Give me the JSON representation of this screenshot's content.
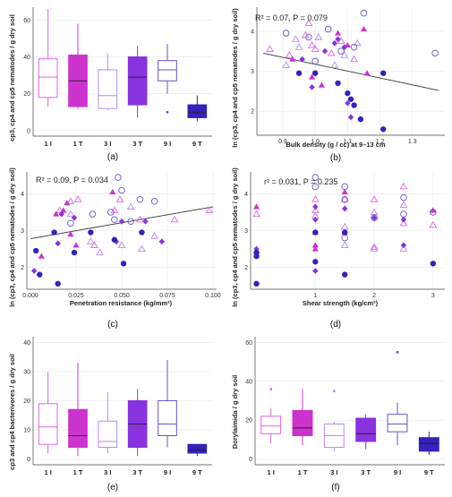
{
  "figure": {
    "panels": [
      {
        "caption": "(a)"
      },
      {
        "caption": "(b)"
      },
      {
        "caption": "(c)"
      },
      {
        "caption": "(d)"
      },
      {
        "caption": "(e)"
      },
      {
        "caption": "(f)"
      }
    ]
  },
  "colors": {
    "I1": "#dd66e0",
    "T1": "#cc33cc",
    "I3": "#bb88ee",
    "T3": "#8833dd",
    "I9": "#6655cc",
    "T9": "#3322bb",
    "line": "#333333"
  },
  "chart_data": [
    {
      "panel": "a",
      "type": "box",
      "ylabel": "cp3, cp4 and cp5 nematodes / g dry soil",
      "categories": [
        "1 I",
        "1 T",
        "3 I",
        "3 T",
        "9 I",
        "9 T"
      ],
      "ylim": [
        -3,
        67
      ],
      "yticks": [
        0,
        20,
        40,
        60
      ],
      "boxes": [
        {
          "cat": "1 I",
          "whislo": 13,
          "q1": 18,
          "med": 29,
          "q3": 39,
          "whishi": 66,
          "fliers": [],
          "filled": false,
          "color": "I1"
        },
        {
          "cat": "1 T",
          "whislo": 12,
          "q1": 13,
          "med": 27,
          "q3": 41,
          "whishi": 58,
          "fliers": [],
          "filled": true,
          "color": "T1"
        },
        {
          "cat": "3 I",
          "whislo": 11,
          "q1": 12,
          "med": 19,
          "q3": 33,
          "whishi": 42,
          "fliers": [],
          "filled": false,
          "color": "I3"
        },
        {
          "cat": "3 T",
          "whislo": 7,
          "q1": 14,
          "med": 29,
          "q3": 40,
          "whishi": 46,
          "fliers": [],
          "filled": true,
          "color": "T3"
        },
        {
          "cat": "9 I",
          "whislo": 20,
          "q1": 27,
          "med": 33,
          "q3": 38,
          "whishi": 47,
          "fliers": [
            10
          ],
          "filled": false,
          "color": "I9"
        },
        {
          "cat": "9 T",
          "whislo": 5,
          "q1": 7,
          "med": 10,
          "q3": 14,
          "whishi": 19,
          "fliers": [],
          "filled": true,
          "color": "T9"
        }
      ]
    },
    {
      "panel": "b",
      "type": "scatter",
      "annotation": "R² = 0.07, P = 0.079",
      "ylabel": "ln (cp3, cp4 and cp5 nematodes / g dry soil)",
      "xlabel": "Bulk density (g / cc) at 9–13 cm",
      "xlim": [
        0.82,
        1.4
      ],
      "ylim": [
        1.4,
        4.6
      ],
      "xticks": [
        0.9,
        1.0,
        1.1,
        1.2,
        1.3
      ],
      "xticklabels": [
        "0.9",
        "1.0",
        "1.1",
        "1.2",
        "1.3"
      ],
      "yticks": [
        2,
        3,
        4
      ],
      "trend": {
        "x": [
          0.84,
          1.38
        ],
        "y": [
          3.45,
          2.52
        ]
      },
      "points": [
        {
          "x": 0.98,
          "y": 4.2,
          "g": "I1"
        },
        {
          "x": 0.99,
          "y": 3.65,
          "g": "I1"
        },
        {
          "x": 1.0,
          "y": 3.55,
          "g": "I1"
        },
        {
          "x": 1.05,
          "y": 3.45,
          "g": "I1"
        },
        {
          "x": 1.12,
          "y": 3.3,
          "g": "I1"
        },
        {
          "x": 0.92,
          "y": 3.4,
          "g": "I1"
        },
        {
          "x": 0.97,
          "y": 3.9,
          "g": "I1"
        },
        {
          "x": 0.86,
          "y": 3.55,
          "g": "I1"
        },
        {
          "x": 1.08,
          "y": 3.75,
          "g": "I1"
        },
        {
          "x": 0.93,
          "y": 3.3,
          "g": "T1"
        },
        {
          "x": 1.02,
          "y": 2.65,
          "g": "T1"
        },
        {
          "x": 1.07,
          "y": 3.95,
          "g": "T1"
        },
        {
          "x": 1.1,
          "y": 3.65,
          "g": "T1"
        },
        {
          "x": 1.15,
          "y": 4.05,
          "g": "T1"
        },
        {
          "x": 1.16,
          "y": 2.95,
          "g": "T1"
        },
        {
          "x": 0.99,
          "y": 2.85,
          "g": "T1"
        },
        {
          "x": 0.94,
          "y": 3.8,
          "g": "I3"
        },
        {
          "x": 0.95,
          "y": 3.6,
          "g": "I3"
        },
        {
          "x": 1.01,
          "y": 3.85,
          "g": "I3"
        },
        {
          "x": 1.06,
          "y": 3.15,
          "g": "I3"
        },
        {
          "x": 1.09,
          "y": 3.4,
          "g": "I3"
        },
        {
          "x": 1.13,
          "y": 3.7,
          "g": "I3"
        },
        {
          "x": 0.91,
          "y": 3.15,
          "g": "I3"
        },
        {
          "x": 0.96,
          "y": 3.3,
          "g": "T3"
        },
        {
          "x": 1.03,
          "y": 3.5,
          "g": "T3"
        },
        {
          "x": 1.06,
          "y": 3.7,
          "g": "T3"
        },
        {
          "x": 1.09,
          "y": 3.6,
          "g": "T3"
        },
        {
          "x": 1.1,
          "y": 2.2,
          "g": "T3"
        },
        {
          "x": 1.11,
          "y": 1.85,
          "g": "T3"
        },
        {
          "x": 1.07,
          "y": 3.8,
          "g": "T3"
        },
        {
          "x": 0.99,
          "y": 2.6,
          "g": "T3"
        },
        {
          "x": 0.91,
          "y": 3.95,
          "g": "I9"
        },
        {
          "x": 0.98,
          "y": 3.85,
          "g": "I9"
        },
        {
          "x": 1.0,
          "y": 3.25,
          "g": "I9"
        },
        {
          "x": 1.04,
          "y": 4.05,
          "g": "I9"
        },
        {
          "x": 1.08,
          "y": 3.5,
          "g": "I9"
        },
        {
          "x": 1.15,
          "y": 4.45,
          "g": "I9"
        },
        {
          "x": 1.37,
          "y": 3.45,
          "g": "I9"
        },
        {
          "x": 1.12,
          "y": 3.6,
          "g": "I9"
        },
        {
          "x": 0.95,
          "y": 2.95,
          "g": "T9"
        },
        {
          "x": 1.0,
          "y": 2.95,
          "g": "T9"
        },
        {
          "x": 1.07,
          "y": 2.7,
          "g": "T9"
        },
        {
          "x": 1.1,
          "y": 2.45,
          "g": "T9"
        },
        {
          "x": 1.11,
          "y": 2.3,
          "g": "T9"
        },
        {
          "x": 1.12,
          "y": 2.15,
          "g": "T9"
        },
        {
          "x": 1.14,
          "y": 1.8,
          "g": "T9"
        },
        {
          "x": 1.21,
          "y": 2.95,
          "g": "T9"
        },
        {
          "x": 1.21,
          "y": 1.55,
          "g": "T9"
        }
      ]
    },
    {
      "panel": "c",
      "type": "scatter",
      "annotation": "R² = 0.09, P = 0.034",
      "ylabel": "ln (cp3, cp4 and cp5 nematodes / g dry soil)",
      "xlabel": "Penetration resistance (kg/mm²)",
      "xlim": [
        -0.002,
        0.102
      ],
      "ylim": [
        1.4,
        4.6
      ],
      "xticks": [
        0.0,
        0.025,
        0.05,
        0.075,
        0.1
      ],
      "xticklabels": [
        "0.000",
        "0.025",
        "0.050",
        "0.075",
        "0.100"
      ],
      "yticks": [
        2,
        3,
        4
      ],
      "trend": {
        "x": [
          0.0,
          0.1
        ],
        "y": [
          2.78,
          3.65
        ]
      },
      "points": [
        {
          "x": 0.016,
          "y": 3.55,
          "g": "I1"
        },
        {
          "x": 0.022,
          "y": 3.8,
          "g": "I1"
        },
        {
          "x": 0.026,
          "y": 3.85,
          "g": "I1"
        },
        {
          "x": 0.035,
          "y": 2.6,
          "g": "I1"
        },
        {
          "x": 0.046,
          "y": 3.55,
          "g": "I1"
        },
        {
          "x": 0.049,
          "y": 3.85,
          "g": "I1"
        },
        {
          "x": 0.06,
          "y": 3.3,
          "g": "I1"
        },
        {
          "x": 0.079,
          "y": 3.3,
          "g": "I1"
        },
        {
          "x": 0.098,
          "y": 3.55,
          "g": "I1"
        },
        {
          "x": 0.006,
          "y": 2.3,
          "g": "T1"
        },
        {
          "x": 0.014,
          "y": 3.45,
          "g": "T1"
        },
        {
          "x": 0.018,
          "y": 3.55,
          "g": "T1"
        },
        {
          "x": 0.02,
          "y": 3.75,
          "g": "T1"
        },
        {
          "x": 0.022,
          "y": 2.9,
          "g": "T1"
        },
        {
          "x": 0.025,
          "y": 2.6,
          "g": "T1"
        },
        {
          "x": 0.045,
          "y": 4.05,
          "g": "T1"
        },
        {
          "x": 0.022,
          "y": 3.45,
          "g": "I3"
        },
        {
          "x": 0.033,
          "y": 2.7,
          "g": "I3"
        },
        {
          "x": 0.038,
          "y": 2.4,
          "g": "I3"
        },
        {
          "x": 0.05,
          "y": 2.6,
          "g": "I3"
        },
        {
          "x": 0.055,
          "y": 3.65,
          "g": "I3"
        },
        {
          "x": 0.061,
          "y": 2.5,
          "g": "I3"
        },
        {
          "x": 0.068,
          "y": 2.85,
          "g": "I3"
        },
        {
          "x": 0.002,
          "y": 1.9,
          "g": "T3"
        },
        {
          "x": 0.015,
          "y": 2.65,
          "g": "T3"
        },
        {
          "x": 0.017,
          "y": 3.45,
          "g": "T3"
        },
        {
          "x": 0.024,
          "y": 3.35,
          "g": "T3"
        },
        {
          "x": 0.047,
          "y": 2.7,
          "g": "T3"
        },
        {
          "x": 0.05,
          "y": 3.25,
          "g": "T3"
        },
        {
          "x": 0.063,
          "y": 3.25,
          "g": "T3"
        },
        {
          "x": 0.072,
          "y": 2.7,
          "g": "T3"
        },
        {
          "x": 0.022,
          "y": 3.2,
          "g": "I9"
        },
        {
          "x": 0.034,
          "y": 3.45,
          "g": "I9"
        },
        {
          "x": 0.044,
          "y": 3.5,
          "g": "I9"
        },
        {
          "x": 0.046,
          "y": 3.3,
          "g": "I9"
        },
        {
          "x": 0.048,
          "y": 4.45,
          "g": "I9"
        },
        {
          "x": 0.05,
          "y": 4.1,
          "g": "I9"
        },
        {
          "x": 0.055,
          "y": 3.25,
          "g": "I9"
        },
        {
          "x": 0.06,
          "y": 3.85,
          "g": "I9"
        },
        {
          "x": 0.068,
          "y": 3.8,
          "g": "I9"
        },
        {
          "x": 0.003,
          "y": 2.45,
          "g": "T9"
        },
        {
          "x": 0.005,
          "y": 1.8,
          "g": "T9"
        },
        {
          "x": 0.013,
          "y": 2.95,
          "g": "T9"
        },
        {
          "x": 0.015,
          "y": 1.55,
          "g": "T9"
        },
        {
          "x": 0.024,
          "y": 2.4,
          "g": "T9"
        },
        {
          "x": 0.033,
          "y": 2.95,
          "g": "T9"
        },
        {
          "x": 0.046,
          "y": 2.75,
          "g": "T9"
        },
        {
          "x": 0.051,
          "y": 2.1,
          "g": "T9"
        },
        {
          "x": 0.061,
          "y": 2.95,
          "g": "T9"
        }
      ]
    },
    {
      "panel": "d",
      "type": "scatter",
      "annotation": "r² = 0.031, P = 0.235",
      "ylabel": "ln (cp3, cp4 and cp5 nematodes / g dry soil)",
      "xlabel": "Shear strength (kg/cm²)",
      "xlim": [
        -0.1,
        3.2
      ],
      "ylim": [
        1.4,
        4.6
      ],
      "xticks": [
        1,
        2,
        3
      ],
      "xticklabels": [
        "1",
        "2",
        "3"
      ],
      "yticks": [
        2,
        3,
        4
      ],
      "trend": null,
      "points": [
        {
          "x": 0.0,
          "y": 3.45,
          "g": "I1"
        },
        {
          "x": 1.0,
          "y": 3.85,
          "g": "I1"
        },
        {
          "x": 1.0,
          "y": 3.55,
          "g": "I1"
        },
        {
          "x": 1.5,
          "y": 3.85,
          "g": "I1"
        },
        {
          "x": 2.0,
          "y": 3.85,
          "g": "I1"
        },
        {
          "x": 2.0,
          "y": 2.55,
          "g": "I1"
        },
        {
          "x": 2.5,
          "y": 4.2,
          "g": "I1"
        },
        {
          "x": 2.5,
          "y": 3.2,
          "g": "I1"
        },
        {
          "x": 3.0,
          "y": 3.15,
          "g": "I1"
        },
        {
          "x": 0.0,
          "y": 3.65,
          "g": "T1"
        },
        {
          "x": 1.0,
          "y": 2.95,
          "g": "T1"
        },
        {
          "x": 1.0,
          "y": 2.6,
          "g": "T1"
        },
        {
          "x": 1.0,
          "y": 2.5,
          "g": "T1"
        },
        {
          "x": 1.5,
          "y": 4.05,
          "g": "T1"
        },
        {
          "x": 1.5,
          "y": 2.95,
          "g": "T1"
        },
        {
          "x": 3.0,
          "y": 3.55,
          "g": "T1"
        },
        {
          "x": 1.0,
          "y": 3.4,
          "g": "I3"
        },
        {
          "x": 1.5,
          "y": 3.1,
          "g": "I3"
        },
        {
          "x": 1.5,
          "y": 2.6,
          "g": "I3"
        },
        {
          "x": 2.0,
          "y": 3.5,
          "g": "I3"
        },
        {
          "x": 2.0,
          "y": 2.5,
          "g": "I3"
        },
        {
          "x": 2.5,
          "y": 3.7,
          "g": "I3"
        },
        {
          "x": 2.5,
          "y": 2.5,
          "g": "I3"
        },
        {
          "x": 0.0,
          "y": 2.5,
          "g": "T3"
        },
        {
          "x": 1.0,
          "y": 3.65,
          "g": "T3"
        },
        {
          "x": 1.0,
          "y": 1.9,
          "g": "T3"
        },
        {
          "x": 1.0,
          "y": 3.3,
          "g": "T3"
        },
        {
          "x": 1.5,
          "y": 3.6,
          "g": "T3"
        },
        {
          "x": 2.0,
          "y": 3.35,
          "g": "T3"
        },
        {
          "x": 2.5,
          "y": 2.6,
          "g": "T3"
        },
        {
          "x": 2.5,
          "y": 3.3,
          "g": "T3"
        },
        {
          "x": 1.0,
          "y": 4.45,
          "g": "I9"
        },
        {
          "x": 1.0,
          "y": 4.2,
          "g": "I9"
        },
        {
          "x": 1.5,
          "y": 4.2,
          "g": "I9"
        },
        {
          "x": 1.5,
          "y": 3.85,
          "g": "I9"
        },
        {
          "x": 1.5,
          "y": 2.8,
          "g": "I9"
        },
        {
          "x": 2.0,
          "y": 3.35,
          "g": "I9"
        },
        {
          "x": 2.5,
          "y": 3.9,
          "g": "I9"
        },
        {
          "x": 2.5,
          "y": 3.45,
          "g": "I9"
        },
        {
          "x": 3.0,
          "y": 3.5,
          "g": "I9"
        },
        {
          "x": 0.0,
          "y": 2.4,
          "g": "T9"
        },
        {
          "x": 0.0,
          "y": 2.3,
          "g": "T9"
        },
        {
          "x": 0.0,
          "y": 1.55,
          "g": "T9"
        },
        {
          "x": 1.0,
          "y": 2.95,
          "g": "T9"
        },
        {
          "x": 1.0,
          "y": 2.15,
          "g": "T9"
        },
        {
          "x": 1.5,
          "y": 1.8,
          "g": "T9"
        },
        {
          "x": 1.5,
          "y": 2.95,
          "g": "T9"
        },
        {
          "x": 3.0,
          "y": 2.1,
          "g": "T9"
        }
      ]
    },
    {
      "panel": "e",
      "type": "box",
      "ylabel": "cp3 and cp4 bacterivores / g dry soil",
      "categories": [
        "1 I",
        "1 T",
        "3 I",
        "3 T",
        "9 I",
        "9 T"
      ],
      "ylim": [
        -2,
        42
      ],
      "yticks": [
        0,
        10,
        20,
        30,
        40
      ],
      "boxes": [
        {
          "cat": "1 I",
          "whislo": 2,
          "q1": 5,
          "med": 11,
          "q3": 19,
          "whishi": 30,
          "fliers": [],
          "filled": false,
          "color": "I1"
        },
        {
          "cat": "1 T",
          "whislo": 1,
          "q1": 4,
          "med": 8,
          "q3": 17,
          "whishi": 33,
          "fliers": [],
          "filled": true,
          "color": "T1"
        },
        {
          "cat": "3 I",
          "whislo": 2,
          "q1": 4,
          "med": 6,
          "q3": 13,
          "whishi": 23,
          "fliers": [],
          "filled": false,
          "color": "I3"
        },
        {
          "cat": "3 T",
          "whislo": 1,
          "q1": 4,
          "med": 12,
          "q3": 20,
          "whishi": 24,
          "fliers": [],
          "filled": true,
          "color": "T3"
        },
        {
          "cat": "9 I",
          "whislo": 4,
          "q1": 8,
          "med": 12,
          "q3": 20,
          "whishi": 34,
          "fliers": [],
          "filled": false,
          "color": "I9"
        },
        {
          "cat": "9 T",
          "whislo": 1,
          "q1": 2,
          "med": 3,
          "q3": 5,
          "whishi": 5,
          "fliers": [],
          "filled": true,
          "color": "T9"
        }
      ]
    },
    {
      "panel": "f",
      "type": "box",
      "ylabel": "Dorylaimida / g dry soil",
      "categories": [
        "1 I",
        "1 T",
        "3 I",
        "3 T",
        "9 I",
        "9 T"
      ],
      "ylim": [
        -3,
        63
      ],
      "yticks": [
        0,
        20,
        40,
        60
      ],
      "boxes": [
        {
          "cat": "1 I",
          "whislo": 8,
          "q1": 13,
          "med": 17,
          "q3": 22,
          "whishi": 26,
          "fliers": [
            36
          ],
          "filled": false,
          "color": "I1"
        },
        {
          "cat": "1 T",
          "whislo": 7,
          "q1": 12,
          "med": 16,
          "q3": 25,
          "whishi": 36,
          "fliers": [],
          "filled": true,
          "color": "T1"
        },
        {
          "cat": "3 I",
          "whislo": 4,
          "q1": 6,
          "med": 12,
          "q3": 18,
          "whishi": 19,
          "fliers": [
            35
          ],
          "filled": false,
          "color": "I3"
        },
        {
          "cat": "3 T",
          "whislo": 5,
          "q1": 9,
          "med": 13,
          "q3": 21,
          "whishi": 23,
          "fliers": [],
          "filled": true,
          "color": "T3"
        },
        {
          "cat": "9 I",
          "whislo": 7,
          "q1": 14,
          "med": 18,
          "q3": 23,
          "whishi": 29,
          "fliers": [
            55
          ],
          "filled": false,
          "color": "I9"
        },
        {
          "cat": "9 T",
          "whislo": 2,
          "q1": 4,
          "med": 8,
          "q3": 11,
          "whishi": 14,
          "fliers": [],
          "filled": true,
          "color": "T9"
        }
      ]
    }
  ]
}
